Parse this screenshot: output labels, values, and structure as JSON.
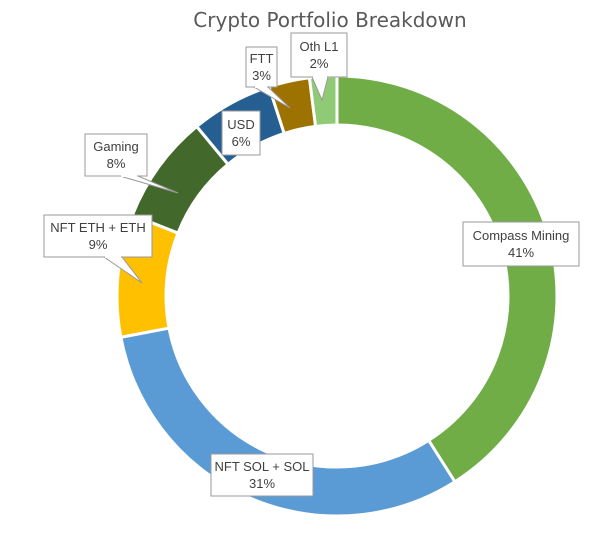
{
  "chart_data": {
    "type": "pie",
    "variant": "doughnut",
    "title": "Crypto Portfolio Breakdown",
    "start": "top",
    "direction": "clockwise",
    "legend": "none",
    "slices": [
      {
        "label": "Compass Mining",
        "value": 41,
        "value_label": "41%",
        "color": "#70ad47"
      },
      {
        "label": "NFT SOL + SOL",
        "value": 31,
        "value_label": "31%",
        "color": "#5b9bd5"
      },
      {
        "label": "NFT ETH + ETH",
        "value": 9,
        "value_label": "9%",
        "color": "#ffc000"
      },
      {
        "label": "Gaming",
        "value": 8,
        "value_label": "8%",
        "color": "#43682b"
      },
      {
        "label": "USD",
        "value": 6,
        "value_label": "6%",
        "color": "#255e91"
      },
      {
        "label": "FTT",
        "value": 3,
        "value_label": "3%",
        "color": "#9e7200"
      },
      {
        "label": "Oth L1",
        "value": 2,
        "value_label": "2%",
        "color": "#8fca74"
      }
    ]
  }
}
